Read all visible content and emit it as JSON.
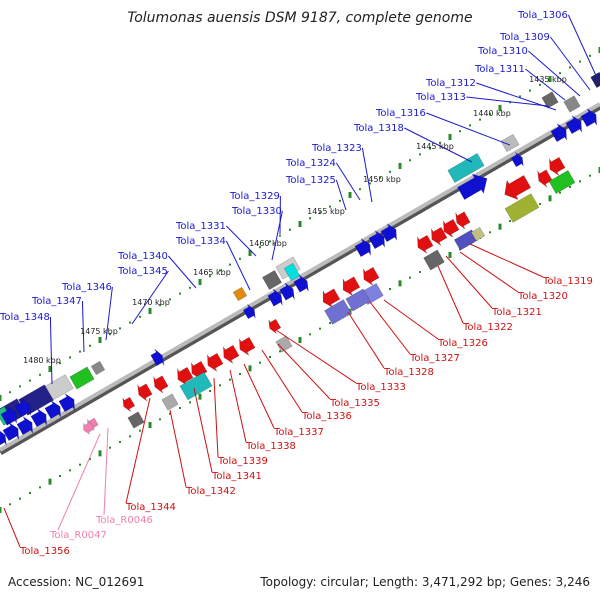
{
  "title": "Tolumonas auensis DSM 9187, complete genome",
  "footer": {
    "accession": "Accession: NC_012691",
    "topology": "Topology: circular; Length: 3,471,292 bp; Genes: 3,246"
  },
  "colors": {
    "plus_label": "#1a1acc",
    "minus_label": "#cc1111",
    "rna_label": "#f080b0",
    "backbone": "#999999",
    "tick_green": "#2a8a2a"
  },
  "kbp_marks": [
    "1435 kbp",
    "1440 kbp",
    "1445 kbp",
    "1450 kbp",
    "1455 kbp",
    "1460 kbp",
    "1465 kbp",
    "1470 kbp",
    "1475 kbp",
    "1480 kbp"
  ],
  "plus_labels": [
    "Tola_1306",
    "Tola_1309",
    "Tola_1310",
    "Tola_1311",
    "Tola_1312",
    "Tola_1313",
    "Tola_1316",
    "Tola_1318",
    "Tola_1323",
    "Tola_1324",
    "Tola_1325",
    "Tola_1329",
    "Tola_1330",
    "Tola_1331",
    "Tola_1334",
    "Tola_1340",
    "Tola_1345",
    "Tola_1346",
    "Tola_1347",
    "Tola_1348"
  ],
  "minus_labels": [
    "Tola_1319",
    "Tola_1320",
    "Tola_1321",
    "Tola_1322",
    "Tola_1326",
    "Tola_1327",
    "Tola_1328",
    "Tola_1333",
    "Tola_1335",
    "Tola_1336",
    "Tola_1337",
    "Tola_1338",
    "Tola_1339",
    "Tola_1341",
    "Tola_1342",
    "Tola_1344",
    "Tola_1356"
  ],
  "rna_labels": [
    "Tola_R0046",
    "Tola_R0047"
  ],
  "icons": [
    "gene-arrow-icon",
    "gene-box-icon"
  ]
}
